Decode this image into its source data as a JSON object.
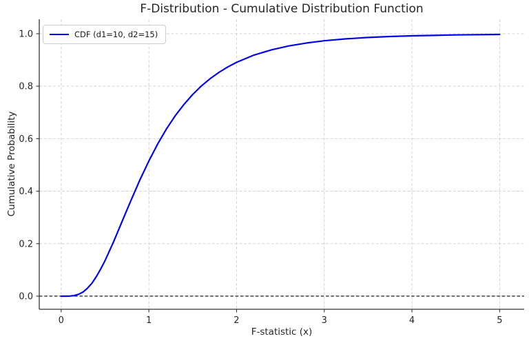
{
  "chart_data": {
    "type": "line",
    "title": "F-Distribution - Cumulative Distribution Function",
    "xlabel": "F-statistic (x)",
    "ylabel": "Cumulative Probability",
    "xlim": [
      -0.25,
      5.28
    ],
    "ylim": [
      -0.05,
      1.055
    ],
    "xticks": [
      0,
      1,
      2,
      3,
      4,
      5
    ],
    "xtick_labels": [
      "0",
      "1",
      "2",
      "3",
      "4",
      "5"
    ],
    "yticks": [
      0.0,
      0.2,
      0.4,
      0.6,
      0.8,
      1.0
    ],
    "ytick_labels": [
      "0.0",
      "0.2",
      "0.4",
      "0.6",
      "0.8",
      "1.0"
    ],
    "grid": true,
    "grid_style": "dashed",
    "grid_color": "#d3d3d3",
    "legend_position": "upper left",
    "hline": {
      "y": 0.0,
      "color": "#000000",
      "style": "dashed"
    },
    "series": [
      {
        "name": "CDF (d1=10, d2=15)",
        "color": "#0101f0",
        "x": [
          0,
          0.05,
          0.1,
          0.15,
          0.2,
          0.25,
          0.3,
          0.35,
          0.4,
          0.45,
          0.5,
          0.6,
          0.7,
          0.8,
          0.9,
          1.0,
          1.1,
          1.2,
          1.3,
          1.4,
          1.5,
          1.6,
          1.7,
          1.8,
          1.9,
          2.0,
          2.2,
          2.4,
          2.6,
          2.8,
          3.0,
          3.25,
          3.5,
          3.75,
          4.0,
          4.5,
          5.0
        ],
        "y": [
          0,
          0.0,
          0.0004,
          0.0023,
          0.0071,
          0.016,
          0.0302,
          0.0489,
          0.0737,
          0.1029,
          0.1354,
          0.2091,
          0.2888,
          0.3682,
          0.4446,
          0.5149,
          0.5797,
          0.6368,
          0.687,
          0.7307,
          0.7686,
          0.8011,
          0.829,
          0.8529,
          0.8734,
          0.8909,
          0.9189,
          0.9388,
          0.9536,
          0.9648,
          0.973,
          0.9804,
          0.9856,
          0.9893,
          0.992,
          0.9954,
          0.9972
        ]
      }
    ]
  }
}
